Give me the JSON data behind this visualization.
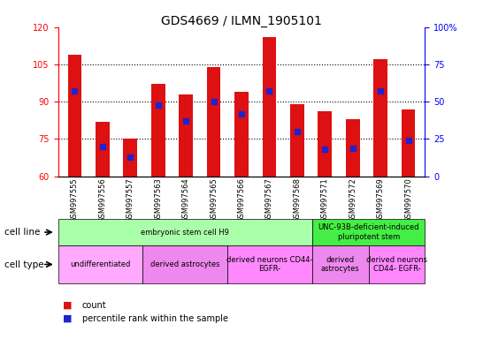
{
  "title": "GDS4669 / ILMN_1905101",
  "samples": [
    "GSM997555",
    "GSM997556",
    "GSM997557",
    "GSM997563",
    "GSM997564",
    "GSM997565",
    "GSM997566",
    "GSM997567",
    "GSM997568",
    "GSM997571",
    "GSM997572",
    "GSM997569",
    "GSM997570"
  ],
  "counts": [
    109,
    82,
    75,
    97,
    93,
    104,
    94,
    116,
    89,
    86,
    83,
    107,
    87
  ],
  "percentiles": [
    57,
    20,
    13,
    48,
    37,
    50,
    42,
    57,
    30,
    18,
    19,
    57,
    24
  ],
  "ylim_left": [
    60,
    120
  ],
  "ylim_right": [
    0,
    100
  ],
  "left_ticks": [
    60,
    75,
    90,
    105,
    120
  ],
  "right_ticks": [
    0,
    25,
    50,
    75,
    100
  ],
  "bar_color": "#dd1111",
  "dot_color": "#2222cc",
  "cell_line_groups": [
    {
      "label": "embryonic stem cell H9",
      "start": 0,
      "end": 9,
      "color": "#aaffaa"
    },
    {
      "label": "UNC-93B-deficient-induced\npluripotent stem",
      "start": 9,
      "end": 13,
      "color": "#44ee44"
    }
  ],
  "cell_type_groups": [
    {
      "label": "undifferentiated",
      "start": 0,
      "end": 3,
      "color": "#ffaaff"
    },
    {
      "label": "derived astrocytes",
      "start": 3,
      "end": 6,
      "color": "#ee88ee"
    },
    {
      "label": "derived neurons CD44-\nEGFR-",
      "start": 6,
      "end": 9,
      "color": "#ff88ff"
    },
    {
      "label": "derived\nastrocytes",
      "start": 9,
      "end": 11,
      "color": "#ee88ee"
    },
    {
      "label": "derived neurons\nCD44- EGFR-",
      "start": 11,
      "end": 13,
      "color": "#ff88ff"
    }
  ],
  "label_cell_line": "cell line",
  "label_cell_type": "cell type",
  "legend_count": "count",
  "legend_percentile": "percentile rank within the sample",
  "bar_width": 0.5
}
